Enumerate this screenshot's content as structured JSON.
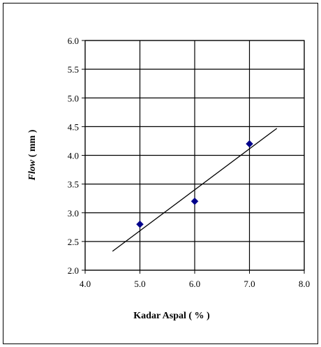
{
  "chart_data": {
    "type": "scatter",
    "xlabel": "Kadar Aspal ( % )",
    "ylabel_italic": "Flow",
    "ylabel_rest": " ( mm )",
    "xlim": [
      4.0,
      8.0
    ],
    "ylim": [
      2.0,
      6.0
    ],
    "x_ticks": [
      "4.0",
      "5.0",
      "6.0",
      "7.0",
      "8.0"
    ],
    "y_ticks": [
      "2.0",
      "2.5",
      "3.0",
      "3.5",
      "4.0",
      "4.5",
      "5.0",
      "5.5",
      "6.0"
    ],
    "x_tick_values": [
      4.0,
      5.0,
      6.0,
      7.0,
      8.0
    ],
    "y_tick_values": [
      2.0,
      2.5,
      3.0,
      3.5,
      4.0,
      4.5,
      5.0,
      5.5,
      6.0
    ],
    "grid": true,
    "series": [
      {
        "points": [
          {
            "x": 5.0,
            "y": 2.8
          },
          {
            "x": 6.0,
            "y": 3.2
          },
          {
            "x": 7.0,
            "y": 4.2
          }
        ],
        "marker": "diamond",
        "color": "#00008B"
      }
    ],
    "trendline": {
      "x": [
        4.5,
        7.5
      ],
      "y": [
        2.33,
        4.47
      ],
      "color": "#000000"
    }
  }
}
